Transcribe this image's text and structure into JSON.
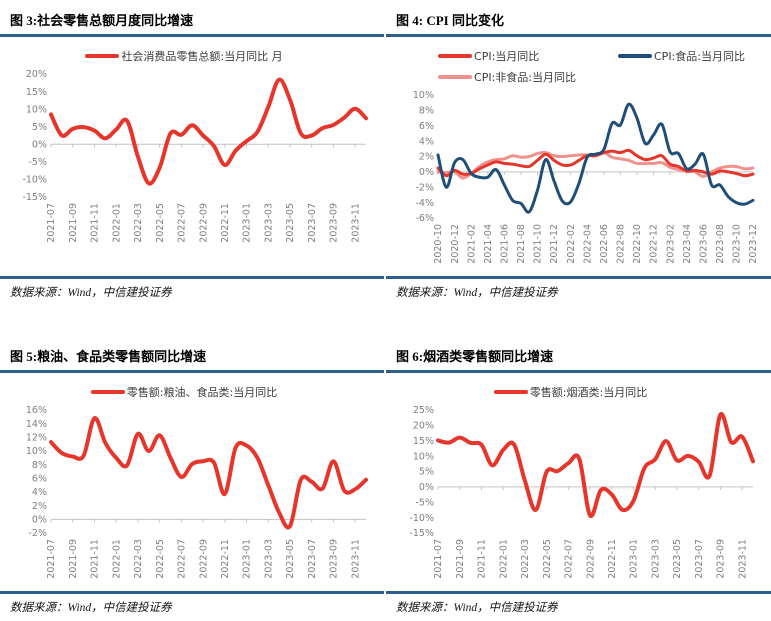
{
  "colors": {
    "accent_rule": "#2d5f8d",
    "axis_text": "#7f7f7f",
    "axis_line": "#c3c3c3",
    "red": "#e6352b",
    "navy": "#1f4e79",
    "pink": "#f0918c"
  },
  "charts": [
    {
      "title": "图 3:社会零售总额月度同比增速",
      "source": "数据来源：Wind，中信建投证券",
      "chart_data": {
        "type": "line",
        "title": "社会零售总额月度同比增速",
        "legend_position": "top",
        "grid": false,
        "x_tick_every": 2,
        "ylim": [
          -15,
          20
        ],
        "ytick_step": 5,
        "x": [
          "2021-07",
          "2021-08",
          "2021-09",
          "2021-10",
          "2021-11",
          "2021-12",
          "2022-01",
          "2022-02",
          "2022-03",
          "2022-04",
          "2022-05",
          "2022-06",
          "2022-07",
          "2022-08",
          "2022-09",
          "2022-10",
          "2022-11",
          "2022-12",
          "2023-01",
          "2023-02",
          "2023-03",
          "2023-04",
          "2023-05",
          "2023-06",
          "2023-07",
          "2023-08",
          "2023-09",
          "2023-10",
          "2023-11",
          "2023-12"
        ],
        "series": [
          {
            "name": "社会消费品零售总额:当月同比 月",
            "color": "#e6352b",
            "values": [
              8.5,
              2.5,
              4.4,
              4.9,
              3.9,
              1.7,
              4.2,
              6.7,
              -3.5,
              -11.1,
              -6.7,
              3.1,
              2.7,
              5.4,
              2.5,
              -0.5,
              -5.9,
              -1.8,
              0.9,
              3.5,
              10.6,
              18.4,
              12.7,
              3.1,
              2.5,
              4.6,
              5.5,
              7.6,
              10.1,
              7.4
            ]
          }
        ]
      }
    },
    {
      "title": "图 4: CPI 同比变化",
      "source": "数据来源：Wind，中信建投证券",
      "chart_data": {
        "type": "line",
        "title": "CPI 同比变化",
        "legend_position": "top",
        "grid": false,
        "x_tick_every": 2,
        "ylim": [
          -6,
          10
        ],
        "ytick_step": 2,
        "x": [
          "2020-10",
          "2020-11",
          "2020-12",
          "2021-01",
          "2021-02",
          "2021-03",
          "2021-04",
          "2021-05",
          "2021-06",
          "2021-07",
          "2021-08",
          "2021-09",
          "2021-10",
          "2021-11",
          "2021-12",
          "2022-01",
          "2022-02",
          "2022-03",
          "2022-04",
          "2022-05",
          "2022-06",
          "2022-07",
          "2022-08",
          "2022-09",
          "2022-10",
          "2022-11",
          "2022-12",
          "2023-01",
          "2023-02",
          "2023-03",
          "2023-04",
          "2023-05",
          "2023-06",
          "2023-07",
          "2023-08",
          "2023-09",
          "2023-10",
          "2023-11",
          "2023-12"
        ],
        "series": [
          {
            "name": "CPI:非食品:当月同比",
            "color": "#f0918c",
            "values": [
              0.0,
              -0.1,
              0.0,
              -0.8,
              -0.2,
              0.7,
              1.3,
              1.6,
              1.7,
              2.1,
              1.9,
              2.0,
              2.4,
              2.5,
              2.1,
              2.0,
              2.1,
              2.2,
              2.2,
              2.1,
              2.5,
              1.9,
              1.7,
              1.5,
              1.1,
              1.1,
              1.1,
              1.2,
              0.6,
              0.3,
              0.1,
              0.0,
              -0.6,
              0.0,
              0.5,
              0.7,
              0.7,
              0.4,
              0.5
            ]
          },
          {
            "name": "CPI:当月同比",
            "color": "#e6352b",
            "values": [
              0.5,
              -0.5,
              0.2,
              -0.3,
              -0.2,
              0.4,
              0.9,
              1.3,
              1.1,
              1.0,
              0.8,
              0.7,
              1.5,
              2.3,
              1.5,
              0.9,
              0.9,
              1.5,
              2.1,
              2.1,
              2.5,
              2.7,
              2.5,
              2.8,
              2.1,
              1.6,
              1.8,
              2.1,
              1.0,
              0.7,
              0.1,
              0.2,
              0.0,
              -0.3,
              0.1,
              0.0,
              -0.2,
              -0.5,
              -0.3
            ]
          },
          {
            "name": "CPI:食品:当月同比",
            "color": "#1f4e79",
            "values": [
              2.2,
              -2.0,
              1.2,
              1.6,
              -0.2,
              -0.7,
              -0.7,
              0.3,
              -1.7,
              -3.7,
              -4.1,
              -5.2,
              -2.4,
              1.6,
              -1.2,
              -3.8,
              -3.9,
              -1.5,
              1.9,
              2.3,
              2.9,
              6.3,
              6.1,
              8.8,
              7.0,
              3.7,
              4.8,
              6.2,
              2.6,
              2.4,
              0.4,
              1.0,
              2.3,
              -1.7,
              -1.7,
              -3.2,
              -4.0,
              -4.2,
              -3.7
            ]
          }
        ],
        "legend_order": [
          "CPI:当月同比",
          "CPI:食品:当月同比",
          "CPI:非食品:当月同比"
        ]
      }
    },
    {
      "title": "图 5:粮油、食品类零售额同比增速",
      "source": "数据来源：Wind，中信建投证券",
      "chart_data": {
        "type": "line",
        "title": "粮油、食品类零售额同比增速",
        "legend_position": "top",
        "grid": false,
        "x_tick_every": 2,
        "ylim": [
          -2,
          16
        ],
        "ytick_step": 2,
        "x": [
          "2021-07",
          "2021-08",
          "2021-09",
          "2021-10",
          "2021-11",
          "2021-12",
          "2022-01",
          "2022-02",
          "2022-03",
          "2022-04",
          "2022-05",
          "2022-06",
          "2022-07",
          "2022-08",
          "2022-09",
          "2022-10",
          "2022-11",
          "2022-12",
          "2023-01",
          "2023-02",
          "2023-03",
          "2023-04",
          "2023-05",
          "2023-06",
          "2023-07",
          "2023-08",
          "2023-09",
          "2023-10",
          "2023-11",
          "2023-12"
        ],
        "series": [
          {
            "name": "零售额:粮油、食品类:当月同比",
            "color": "#e6352b",
            "values": [
              11.3,
              9.7,
              9.2,
              9.3,
              14.8,
              11.2,
              9.0,
              7.9,
              12.5,
              10.0,
              12.3,
              9.0,
              6.2,
              8.1,
              8.5,
              8.3,
              3.7,
              10.5,
              10.8,
              9.0,
              5.0,
              1.0,
              -1.0,
              5.8,
              5.5,
              4.5,
              8.5,
              4.2,
              4.4,
              5.8
            ]
          }
        ]
      }
    },
    {
      "title": "图 6:烟酒类零售额同比增速",
      "source": "数据来源：Wind，中信建投证券",
      "chart_data": {
        "type": "line",
        "title": "烟酒类零售额同比增速",
        "legend_position": "top",
        "grid": false,
        "x_tick_every": 2,
        "ylim": [
          -15,
          25
        ],
        "ytick_step": 5,
        "x": [
          "2021-07",
          "2021-08",
          "2021-09",
          "2021-10",
          "2021-11",
          "2021-12",
          "2022-01",
          "2022-02",
          "2022-03",
          "2022-04",
          "2022-05",
          "2022-06",
          "2022-07",
          "2022-08",
          "2022-09",
          "2022-10",
          "2022-11",
          "2022-12",
          "2023-01",
          "2023-02",
          "2023-03",
          "2023-04",
          "2023-05",
          "2023-06",
          "2023-07",
          "2023-08",
          "2023-09",
          "2023-10",
          "2023-11",
          "2023-12"
        ],
        "series": [
          {
            "name": "零售额:烟酒类:当月同比",
            "color": "#e6352b",
            "values": [
              15.1,
              14.4,
              16.0,
              14.3,
              13.7,
              7.0,
              12.0,
              13.8,
              2.0,
              -7.5,
              4.9,
              5.1,
              7.7,
              9.2,
              -9.3,
              -1.0,
              -2.5,
              -7.5,
              -4.5,
              6.1,
              9.0,
              14.9,
              8.6,
              10.1,
              8.2,
              3.6,
              23.5,
              14.5,
              16.3,
              8.3
            ]
          }
        ]
      }
    }
  ]
}
